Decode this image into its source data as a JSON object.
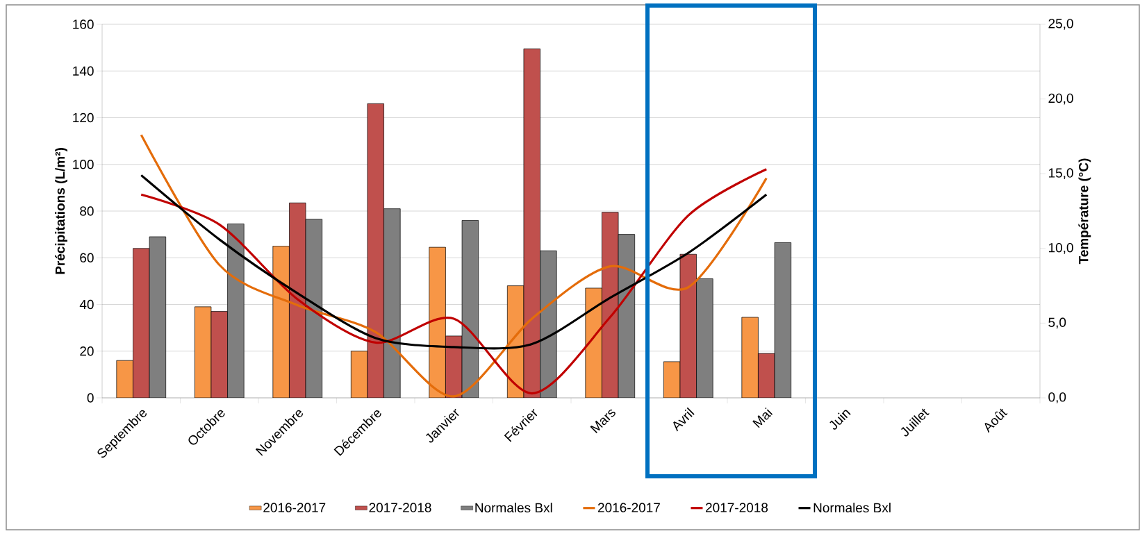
{
  "chart_data": {
    "type": "bar",
    "ylabel": "Précipitations (L/m²)",
    "y2label": "Température (°C)",
    "categories": [
      "Septembre",
      "Octobre",
      "Novembre",
      "Décembre",
      "Janvier",
      "Février",
      "Mars",
      "Avril",
      "Mai",
      "Juin",
      "Juillet",
      "Août"
    ],
    "series": [
      {
        "name": "2016-2017",
        "color": "#f79646",
        "values": [
          16,
          39,
          65,
          20,
          64.5,
          48,
          47,
          15.5,
          34.5,
          null,
          null,
          null
        ]
      },
      {
        "name": "2017-2018",
        "color": "#c0504d",
        "values": [
          64,
          37,
          83.5,
          126,
          26.5,
          149.5,
          79.5,
          61.5,
          19,
          null,
          null,
          null
        ]
      },
      {
        "name": "Normales Bxl",
        "color": "#7f7f7f",
        "values": [
          69,
          74.5,
          76.5,
          81,
          76,
          63,
          70,
          51,
          66.5,
          null,
          null,
          null
        ]
      },
      {
        "name": "2016-2017",
        "type": "line",
        "axis": "y2",
        "color": "#e46c0a",
        "values": [
          17.6,
          8.9,
          6.2,
          4.4,
          0.1,
          5.3,
          8.8,
          7.4,
          14.7,
          null,
          null,
          null
        ]
      },
      {
        "name": "2017-2018",
        "type": "line",
        "axis": "y2",
        "color": "#c00000",
        "values": [
          13.6,
          11.6,
          6.6,
          3.7,
          5.3,
          0.3,
          5.4,
          12.2,
          15.3,
          null,
          null,
          null
        ]
      },
      {
        "name": "Normales Bxl",
        "type": "line",
        "axis": "y2",
        "color": "#000000",
        "values": [
          14.9,
          10.6,
          7.0,
          4.0,
          3.4,
          3.6,
          6.7,
          9.7,
          13.6,
          null,
          null,
          null
        ]
      }
    ],
    "ylim": [
      0,
      160
    ],
    "yticks": [
      0,
      20,
      40,
      60,
      80,
      100,
      120,
      140,
      160
    ],
    "y2lim": [
      0,
      25
    ],
    "y2ticks": [
      {
        "value": 0,
        "label": "0,0"
      },
      {
        "value": 5,
        "label": "5,0"
      },
      {
        "value": 10,
        "label": "10,0"
      },
      {
        "value": 15,
        "label": "15,0"
      },
      {
        "value": 20,
        "label": "20,0"
      },
      {
        "value": 25,
        "label": "25,0"
      }
    ],
    "grid": "y",
    "legend": "bottom"
  }
}
